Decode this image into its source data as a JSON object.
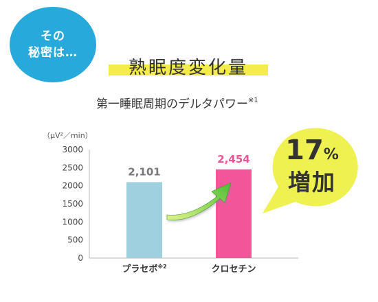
{
  "badge": {
    "line1": "その",
    "line2": "秘密は…"
  },
  "heading": "熟眠度変化量",
  "subheading": "第一睡眠周期のデルタパワー",
  "subheading_note": "※1",
  "callout": {
    "percent": "17",
    "percent_sign": "%",
    "label": "増加"
  },
  "colors": {
    "badge": "#27a9dc",
    "highlight": "#f3ec4a",
    "placebo_bar": "#9fd0df",
    "crocetin_bar": "#f2559a",
    "crocetin_label": "#ea5596",
    "callout": "#eef14f",
    "arrow": "#58c33a"
  },
  "chart_data": {
    "type": "bar",
    "unit": "（μV²／min）",
    "categories": [
      "プラセボ",
      "クロセチン"
    ],
    "category_notes": [
      "※2",
      ""
    ],
    "values": [
      2101,
      2454
    ],
    "value_labels": [
      "2,101",
      "2,454"
    ],
    "ylim": [
      0,
      3000
    ],
    "yticks": [
      0,
      500,
      1000,
      1500,
      2000,
      2500,
      3000
    ],
    "ytick_labels": [
      "0",
      "500",
      "1000",
      "1500",
      "2000",
      "2500",
      "3000"
    ],
    "grid": false
  }
}
